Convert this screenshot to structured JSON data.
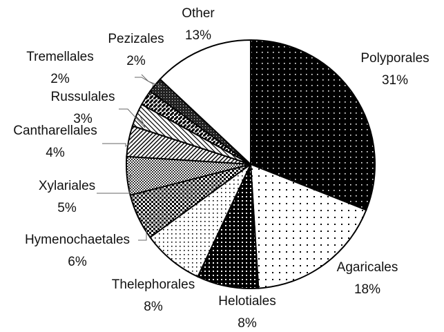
{
  "chart_data": {
    "type": "pie",
    "categories": [
      "Polyporales",
      "Agaricales",
      "Helotiales",
      "Thelephorales",
      "Hymenochaetales",
      "Xylariales",
      "Cantharellales",
      "Russulales",
      "Tremellales",
      "Pezizales",
      "Other"
    ],
    "values": [
      31,
      18,
      8,
      8,
      6,
      5,
      4,
      3,
      2,
      2,
      13
    ],
    "value_labels": [
      "31%",
      "18%",
      "8%",
      "8%",
      "6%",
      "5%",
      "4%",
      "3%",
      "2%",
      "2%",
      "13%"
    ]
  }
}
